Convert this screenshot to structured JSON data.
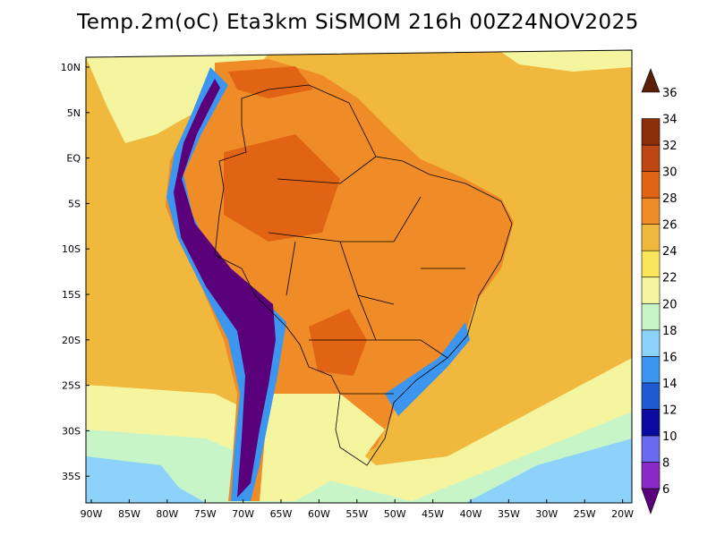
{
  "title": "Temp.2m(oC) Eta3km SiSMOM 216h 00Z24NOV2025",
  "lat_labels": [
    "10N",
    "5N",
    "EQ",
    "5S",
    "10S",
    "15S",
    "20S",
    "25S",
    "30S",
    "35S"
  ],
  "lon_labels": [
    "90W",
    "85W",
    "80W",
    "75W",
    "70W",
    "65W",
    "60W",
    "55W",
    "50W",
    "45W",
    "40W",
    "35W",
    "30W",
    "25W",
    "20W"
  ],
  "colorbar": {
    "labels": [
      "6",
      "8",
      "10",
      "12",
      "14",
      "16",
      "18",
      "20",
      "22",
      "24",
      "26",
      "28",
      "30",
      "32",
      "34",
      "36"
    ],
    "colors": [
      "#5a007a",
      "#8a28c8",
      "#6a6af0",
      "#0a0aa0",
      "#1e5ad2",
      "#3c96f0",
      "#8cd2fa",
      "#c8f5c8",
      "#f5f5a0",
      "#fae65a",
      "#f0b83c",
      "#f08c28",
      "#e06414",
      "#be4612",
      "#8c2d0a",
      "#5a1e0a"
    ]
  },
  "map_colors": {
    "ocean": "#f0b83c",
    "ocean_cool": "#f5f5a0",
    "ocean_cold": "#c8f5c8",
    "ocean_coldest": "#8cd2fa",
    "land_hot": "#f08c28",
    "land_warm": "#e06414",
    "andes_mid": "#3c96f0",
    "andes_high": "#5a007a",
    "border": "#000000"
  }
}
